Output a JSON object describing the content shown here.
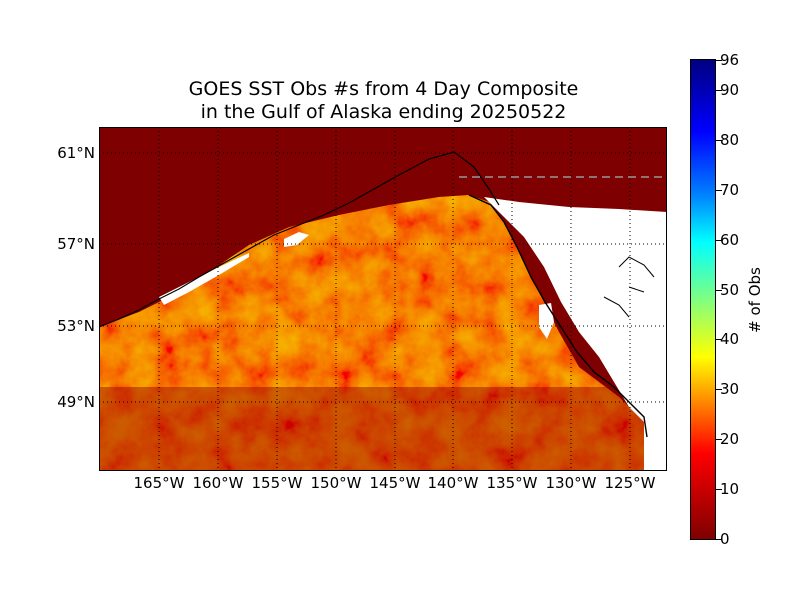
{
  "title": {
    "line1": "GOES SST Obs #s from 4 Day Composite",
    "line2": "in the Gulf of Alaska ending 20250522"
  },
  "map": {
    "lat_labels": [
      "61°N",
      "57°N",
      "53°N",
      "49°N"
    ],
    "lon_labels": [
      "165°W",
      "160°W",
      "155°W",
      "150°W",
      "145°W",
      "140°W",
      "135°W",
      "130°W",
      "125°W"
    ],
    "land_color": "#ffffff",
    "no_data_color": "#7f0000",
    "coastline_color": "#000000",
    "gridline_style": "dotted"
  },
  "colorbar": {
    "label": "# of Obs",
    "ticks": [
      "0",
      "10",
      "20",
      "30",
      "40",
      "50",
      "60",
      "70",
      "80",
      "90",
      "96"
    ],
    "colormap": "jet",
    "min": 0,
    "max": 96
  }
}
